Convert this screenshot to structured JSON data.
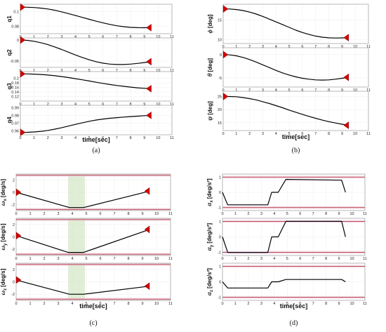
{
  "colors": {
    "line": "#000000",
    "marker": "#d40000",
    "grid": "#dcdcdc",
    "axis": "#9a9a9a",
    "band_fill": "#dcecd0",
    "limit": "#b33a3a",
    "limit_glow": "#f2d0e6"
  },
  "chart_data": [
    {
      "caption": "(a)",
      "type": "line",
      "xlabel": "time[sec]",
      "xticks": [
        "0",
        "1",
        "2",
        "3",
        "4",
        "5",
        "6",
        "7",
        "8",
        "9",
        "10",
        "11"
      ],
      "xlim": [
        0,
        11
      ],
      "subplots": [
        {
          "ylabel": "q1",
          "ylim": [
            0.07,
            0.11
          ],
          "yticks": [
            "0.1",
            "0.08"
          ],
          "ytick_values": [
            0.1,
            0.08
          ],
          "series": [
            {
              "x": [
                0,
                0.5,
                1,
                1.5,
                2,
                2.5,
                3,
                3.5,
                4,
                4.5,
                5,
                5.5,
                6,
                6.5,
                7,
                7.5,
                8,
                8.5,
                9,
                9.5
              ],
              "y": [
                0.106,
                0.1059,
                0.1055,
                0.1047,
                0.1035,
                0.1018,
                0.0996,
                0.0972,
                0.0947,
                0.0921,
                0.0895,
                0.087,
                0.0847,
                0.0826,
                0.0808,
                0.0795,
                0.0786,
                0.0782,
                0.0781,
                0.0782
              ]
            }
          ],
          "markers": [
            {
              "x": 0,
              "y": 0.106,
              "dir": "right"
            },
            {
              "x": 9.5,
              "y": 0.0782,
              "dir": "left"
            }
          ]
        },
        {
          "ylabel": "q2",
          "ylim": [
            -0.065,
            0.005
          ],
          "yticks": [
            "0",
            "-0.05"
          ],
          "ytick_values": [
            0,
            -0.05
          ],
          "series": [
            {
              "x": [
                0,
                0.5,
                1,
                1.5,
                2,
                2.5,
                3,
                3.5,
                4,
                4.5,
                5,
                5.5,
                6,
                6.5,
                7,
                7.5,
                8,
                8.5,
                9,
                9.5
              ],
              "y": [
                0,
                -0.0008,
                -0.003,
                -0.0065,
                -0.011,
                -0.0165,
                -0.0225,
                -0.029,
                -0.0355,
                -0.0415,
                -0.047,
                -0.0515,
                -0.055,
                -0.0572,
                -0.0582,
                -0.0582,
                -0.0572,
                -0.0555,
                -0.0535,
                -0.0515
              ]
            }
          ],
          "markers": [
            {
              "x": 0,
              "y": 0,
              "dir": "right"
            },
            {
              "x": 9.5,
              "y": -0.0515,
              "dir": "left"
            }
          ]
        },
        {
          "ylabel": "q3",
          "ylim": [
            0.1,
            0.23
          ],
          "yticks": [
            "0.2",
            "0.18",
            "0.16",
            "0.14",
            "0.12"
          ],
          "ytick_values": [
            0.2,
            0.18,
            0.16,
            0.14,
            0.12
          ],
          "series": [
            {
              "x": [
                0,
                0.5,
                1,
                1.5,
                2,
                2.5,
                3,
                3.5,
                4,
                4.5,
                5,
                5.5,
                6,
                6.5,
                7,
                7.5,
                8,
                8.5,
                9,
                9.5
              ],
              "y": [
                0.22,
                0.2197,
                0.2188,
                0.2172,
                0.2148,
                0.2118,
                0.208,
                0.2036,
                0.1988,
                0.1937,
                0.1884,
                0.1831,
                0.178,
                0.1732,
                0.1688,
                0.1649,
                0.1615,
                0.1586,
                0.1562,
                0.1545
              ]
            }
          ],
          "markers": [
            {
              "x": 0,
              "y": 0.22,
              "dir": "right"
            },
            {
              "x": 9.5,
              "y": 0.1545,
              "dir": "left"
            }
          ]
        },
        {
          "ylabel": "q4",
          "ylim": [
            0.955,
            0.993
          ],
          "yticks": [
            "0.99",
            "0.98",
            "0.97",
            "0.96"
          ],
          "ytick_values": [
            0.99,
            0.98,
            0.97,
            0.96
          ],
          "series": [
            {
              "x": [
                0,
                0.5,
                1,
                1.5,
                2,
                2.5,
                3,
                3.5,
                4,
                4.5,
                5,
                5.5,
                6,
                6.5,
                7,
                7.5,
                8,
                8.5,
                9,
                9.5
              ],
              "y": [
                0.9581,
                0.9582,
                0.9586,
                0.9594,
                0.9606,
                0.9622,
                0.9641,
                0.9662,
                0.9684,
                0.9705,
                0.9724,
                0.974,
                0.9753,
                0.9763,
                0.9771,
                0.9778,
                0.9784,
                0.979,
                0.9796,
                0.98
              ]
            }
          ],
          "markers": [
            {
              "x": 0,
              "y": 0.9581,
              "dir": "right"
            },
            {
              "x": 9.5,
              "y": 0.98,
              "dir": "left"
            }
          ]
        }
      ]
    },
    {
      "caption": "(b)",
      "type": "line",
      "xlabel": "time[sec]",
      "xticks": [
        "0",
        "1",
        "2",
        "3",
        "4",
        "5",
        "6",
        "7",
        "8",
        "9",
        "10",
        "11"
      ],
      "xlim": [
        0,
        11
      ],
      "subplots": [
        {
          "ylabel_sym": "ϕ",
          "ylabel_unit": "[deg]",
          "ylim": [
            9,
            19
          ],
          "yticks": [
            "15",
            "10"
          ],
          "ytick_values": [
            15,
            10
          ],
          "series": [
            {
              "x": [
                0,
                0.5,
                1,
                1.5,
                2,
                2.5,
                3,
                3.5,
                4,
                4.5,
                5,
                5.5,
                6,
                6.5,
                7,
                7.5,
                8,
                8.5,
                9,
                9.5
              ],
              "y": [
                17.8,
                17.78,
                17.65,
                17.4,
                17.0,
                16.5,
                15.9,
                15.2,
                14.5,
                13.8,
                13.1,
                12.4,
                11.8,
                11.3,
                10.9,
                10.6,
                10.45,
                10.4,
                10.42,
                10.5
              ]
            }
          ],
          "markers": [
            {
              "x": 0,
              "y": 17.8,
              "dir": "right"
            },
            {
              "x": 9.5,
              "y": 10.5,
              "dir": "left"
            }
          ]
        },
        {
          "ylabel_sym": "θ",
          "ylabel_unit": "[deg]",
          "ylim": [
            -7,
            1.5
          ],
          "yticks": [
            "0",
            "-5"
          ],
          "ytick_values": [
            0,
            -5
          ],
          "series": [
            {
              "x": [
                0,
                0.5,
                1,
                1.5,
                2,
                2.5,
                3,
                3.5,
                4,
                4.5,
                5,
                5.5,
                6,
                6.5,
                7,
                7.5,
                8,
                8.5,
                9,
                9.5
              ],
              "y": [
                0,
                -0.05,
                -0.25,
                -0.6,
                -1.05,
                -1.6,
                -2.2,
                -2.8,
                -3.4,
                -3.95,
                -4.4,
                -4.8,
                -5.1,
                -5.3,
                -5.45,
                -5.5,
                -5.45,
                -5.3,
                -5.1,
                -4.9
              ]
            }
          ],
          "markers": [
            {
              "x": 0,
              "y": 0,
              "dir": "right"
            },
            {
              "x": 9.5,
              "y": -4.9,
              "dir": "left"
            }
          ]
        },
        {
          "ylabel_sym": "ψ",
          "ylabel_unit": "[deg]",
          "ylim": [
            12,
            27
          ],
          "yticks": [
            "25",
            "20",
            "15"
          ],
          "ytick_values": [
            25,
            20,
            15
          ],
          "series": [
            {
              "x": [
                0,
                0.5,
                1,
                1.5,
                2,
                2.5,
                3,
                3.5,
                4,
                4.5,
                5,
                5.5,
                6,
                6.5,
                7,
                7.5,
                8,
                8.5,
                9,
                9.5
              ],
              "y": [
                25.0,
                25.0,
                24.9,
                24.6,
                24.2,
                23.7,
                23.0,
                22.3,
                21.5,
                20.7,
                19.8,
                19.0,
                18.2,
                17.4,
                16.7,
                16.0,
                15.4,
                14.9,
                14.4,
                14.0
              ]
            }
          ],
          "markers": [
            {
              "x": 0,
              "y": 25.0,
              "dir": "right"
            },
            {
              "x": 9.5,
              "y": 14.0,
              "dir": "left"
            }
          ]
        }
      ]
    },
    {
      "caption": "(c)",
      "type": "line",
      "xlabel": "time[sec]",
      "xticks": [
        "0",
        "1",
        "2",
        "3",
        "4",
        "5",
        "6",
        "7",
        "8",
        "9",
        "10",
        "11"
      ],
      "xlim": [
        0,
        11
      ],
      "band": {
        "x0": 3.7,
        "x1": 4.9
      },
      "subplots": [
        {
          "ylabel_sym": "ω",
          "ylabel_sub": "x",
          "ylabel_unit": "[deg/s]",
          "ylim": [
            -3,
            3
          ],
          "limits": [
            2.8,
            -2.8
          ],
          "yticks": [
            "2",
            "0",
            "-2"
          ],
          "ytick_values": [
            2,
            0,
            -2
          ],
          "series": [
            {
              "x": [
                0,
                3.8,
                4.8,
                9.5
              ],
              "y": [
                0.0,
                -2.5,
                -2.5,
                0.2
              ]
            }
          ],
          "markers": [
            {
              "x": 0,
              "y": 0.0,
              "dir": "right"
            },
            {
              "x": 9.5,
              "y": 0.2,
              "dir": "left"
            }
          ]
        },
        {
          "ylabel_sym": "ω",
          "ylabel_sub": "y",
          "ylabel_unit": "[deg/s]",
          "ylim": [
            -3,
            3
          ],
          "limits": [
            2.8,
            -2.8
          ],
          "yticks": [
            "2",
            "0",
            "-2"
          ],
          "ytick_values": [
            2,
            0,
            -2
          ],
          "series": [
            {
              "x": [
                0,
                3.7,
                4.8,
                9.5
              ],
              "y": [
                0.2,
                -2.5,
                -2.5,
                1.2
              ]
            }
          ],
          "markers": [
            {
              "x": 0,
              "y": 0.2,
              "dir": "right"
            },
            {
              "x": 9.5,
              "y": 1.2,
              "dir": "left"
            }
          ]
        },
        {
          "ylabel_sym": "ω",
          "ylabel_sub": "z",
          "ylabel_unit": "[deg/s]",
          "ylim": [
            -3,
            3
          ],
          "limits": [
            2.8,
            -2.8
          ],
          "yticks": [
            "2",
            "0",
            "-2"
          ],
          "ytick_values": [
            2,
            0,
            -2
          ],
          "series": [
            {
              "x": [
                0,
                3.8,
                4.8,
                9.5
              ],
              "y": [
                0.3,
                -2.0,
                -2.0,
                -0.7
              ]
            }
          ],
          "markers": [
            {
              "x": 0,
              "y": 0.3,
              "dir": "right"
            },
            {
              "x": 9.5,
              "y": -0.7,
              "dir": "left"
            }
          ]
        }
      ]
    },
    {
      "caption": "(d)",
      "type": "line",
      "xlabel": "time[sec]",
      "xticks": [
        "0",
        "1",
        "2",
        "3",
        "4",
        "5",
        "6",
        "7",
        "8",
        "9",
        "10",
        "11"
      ],
      "xlim": [
        0,
        11
      ],
      "subplots": [
        {
          "ylabel_sym": "α",
          "ylabel_sub": "x",
          "ylabel_unit": "[deg/s²]",
          "ylim": [
            -1.2,
            1.2
          ],
          "limits": [
            1,
            -1
          ],
          "yticks": [
            "1",
            "0",
            "-1"
          ],
          "ytick_values": [
            1,
            0,
            -1
          ],
          "series": [
            {
              "x": [
                0,
                0.4,
                3.5,
                3.8,
                4.3,
                4.9,
                9.2,
                9.5
              ],
              "y": [
                0,
                -0.82,
                -0.82,
                0,
                0,
                0.85,
                0.8,
                0
              ]
            }
          ]
        },
        {
          "ylabel_sym": "α",
          "ylabel_sub": "y",
          "ylabel_unit": "[deg/s²]",
          "ylim": [
            -1.2,
            1.2
          ],
          "limits": [
            1,
            -1
          ],
          "yticks": [
            "1",
            "0",
            "-1"
          ],
          "ytick_values": [
            1,
            0,
            -1
          ],
          "series": [
            {
              "x": [
                0,
                0.4,
                3.5,
                3.8,
                4.3,
                4.9,
                9.2,
                9.5
              ],
              "y": [
                0,
                -1,
                -1,
                0,
                0,
                1,
                1,
                0
              ]
            }
          ]
        },
        {
          "ylabel_sym": "α",
          "ylabel_sub": "z",
          "ylabel_unit": "[deg/s²]",
          "ylim": [
            -1.2,
            1.2
          ],
          "limits": [
            1,
            -1
          ],
          "yticks": [
            "1",
            "0",
            "-1"
          ],
          "ytick_values": [
            1,
            0,
            -1
          ],
          "series": [
            {
              "x": [
                0,
                0.4,
                3.5,
                3.8,
                4.3,
                4.9,
                9.2,
                9.5
              ],
              "y": [
                0,
                -0.4,
                -0.4,
                0,
                0,
                0.15,
                0.15,
                0
              ]
            }
          ]
        }
      ]
    }
  ]
}
